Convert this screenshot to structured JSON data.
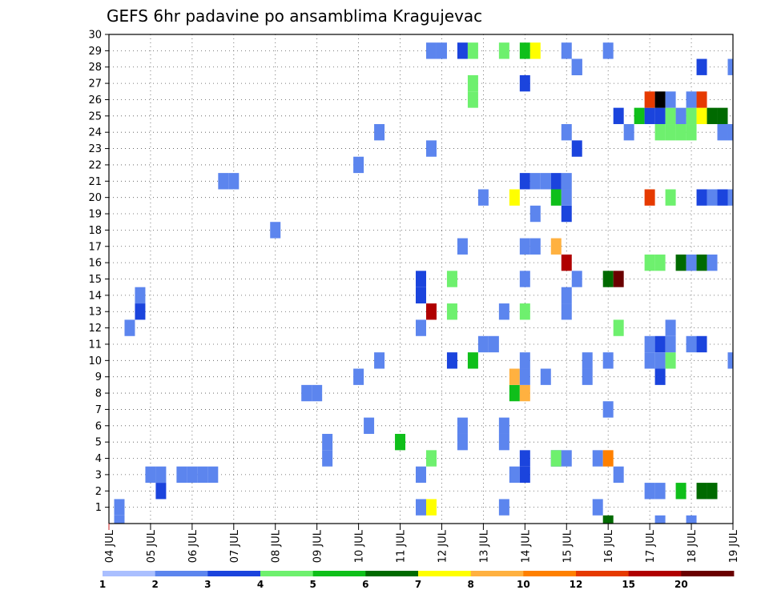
{
  "chart_data": {
    "type": "heatmap",
    "title": "GEFS 6hr padavine po ansamblima Kragujevac",
    "xlabel": "",
    "ylabel": "",
    "x_tick_labels": [
      "04 JUL",
      "05 JUL",
      "06 JUL",
      "07 JUL",
      "08 JUL",
      "09 JUL",
      "10 JUL",
      "11 JUL",
      "12 JUL",
      "13 JUL",
      "14 JUL",
      "15 JUL",
      "16 JUL",
      "17 JUL",
      "18 JUL",
      "19 JUL"
    ],
    "y_tick_labels": [
      "1",
      "2",
      "3",
      "4",
      "5",
      "6",
      "7",
      "8",
      "9",
      "10",
      "11",
      "12",
      "13",
      "14",
      "15",
      "16",
      "17",
      "18",
      "19",
      "20",
      "21",
      "22",
      "23",
      "24",
      "25",
      "26",
      "27",
      "28",
      "29",
      "30"
    ],
    "xlim": [
      0,
      60
    ],
    "ylim": [
      0,
      30
    ],
    "grid": true,
    "colorbar": {
      "labels": [
        "1",
        "2",
        "3",
        "4",
        "5",
        "6",
        "7",
        "8",
        "10",
        "12",
        "15",
        "20"
      ],
      "colors": [
        "#aabfff",
        "#5c85ee",
        "#1b44dd",
        "#6ef06e",
        "#0fbf1a",
        "#006a00",
        "#ffff00",
        "#ffb140",
        "#ff8000",
        "#e63a00",
        "#b00000",
        "#6a0000"
      ]
    },
    "cells": [
      [
        1,
        0,
        1
      ],
      [
        1,
        1,
        1
      ],
      [
        2,
        12,
        1
      ],
      [
        3,
        13,
        2
      ],
      [
        3,
        14,
        1
      ],
      [
        4,
        3,
        1
      ],
      [
        5,
        3,
        1
      ],
      [
        5,
        2,
        2
      ],
      [
        7,
        3,
        1
      ],
      [
        8,
        3,
        1
      ],
      [
        9,
        3,
        1
      ],
      [
        10,
        3,
        1
      ],
      [
        11,
        21,
        1
      ],
      [
        12,
        21,
        1
      ],
      [
        16,
        18,
        1
      ],
      [
        19,
        8,
        1
      ],
      [
        20,
        8,
        1
      ],
      [
        21,
        4,
        1
      ],
      [
        21,
        5,
        1
      ],
      [
        24,
        9,
        1
      ],
      [
        24,
        22,
        1
      ],
      [
        25,
        6,
        1
      ],
      [
        26,
        24,
        1
      ],
      [
        26,
        10,
        1
      ],
      [
        28,
        5,
        4
      ],
      [
        30,
        1,
        1
      ],
      [
        30,
        3,
        1
      ],
      [
        30,
        12,
        1
      ],
      [
        30,
        14,
        2
      ],
      [
        31,
        4,
        3
      ],
      [
        31,
        1,
        6
      ],
      [
        31,
        13,
        10
      ],
      [
        30,
        15,
        2
      ],
      [
        31,
        23,
        1
      ],
      [
        31,
        29,
        1
      ],
      [
        32,
        29,
        1
      ],
      [
        33,
        10,
        2
      ],
      [
        33,
        13,
        3
      ],
      [
        33,
        15,
        3
      ],
      [
        34,
        5,
        1
      ],
      [
        34,
        6,
        1
      ],
      [
        34,
        17,
        1
      ],
      [
        34,
        29,
        2
      ],
      [
        35,
        10,
        4
      ],
      [
        35,
        26,
        3
      ],
      [
        35,
        27,
        3
      ],
      [
        35,
        29,
        3
      ],
      [
        36,
        11,
        1
      ],
      [
        36,
        20,
        1
      ],
      [
        37,
        11,
        1
      ],
      [
        38,
        1,
        1
      ],
      [
        38,
        13,
        1
      ],
      [
        38,
        5,
        1
      ],
      [
        38,
        6,
        1
      ],
      [
        38,
        29,
        3
      ],
      [
        39,
        3,
        1
      ],
      [
        39,
        8,
        4
      ],
      [
        39,
        9,
        7
      ],
      [
        39,
        20,
        6
      ],
      [
        40,
        8,
        7
      ],
      [
        40,
        9,
        1
      ],
      [
        40,
        15,
        1
      ],
      [
        40,
        13,
        3
      ],
      [
        40,
        10,
        1
      ],
      [
        40,
        3,
        2
      ],
      [
        40,
        4,
        2
      ],
      [
        40,
        17,
        1
      ],
      [
        40,
        21,
        2
      ],
      [
        40,
        29,
        4
      ],
      [
        40,
        27,
        2
      ],
      [
        41,
        17,
        1
      ],
      [
        41,
        19,
        1
      ],
      [
        41,
        29,
        6
      ],
      [
        41,
        21,
        1
      ],
      [
        42,
        9,
        1
      ],
      [
        42,
        21,
        1
      ],
      [
        43,
        4,
        2
      ],
      [
        43,
        4,
        3
      ],
      [
        43,
        17,
        7
      ],
      [
        43,
        20,
        4
      ],
      [
        43,
        21,
        2
      ],
      [
        44,
        14,
        1
      ],
      [
        44,
        4,
        1
      ],
      [
        44,
        13,
        1
      ],
      [
        44,
        16,
        10
      ],
      [
        44,
        19,
        2
      ],
      [
        44,
        20,
        1
      ],
      [
        44,
        21,
        1
      ],
      [
        44,
        24,
        1
      ],
      [
        44,
        29,
        1
      ],
      [
        45,
        23,
        2
      ],
      [
        45,
        15,
        1
      ],
      [
        45,
        28,
        2
      ],
      [
        45,
        28,
        1
      ],
      [
        46,
        10,
        1
      ],
      [
        46,
        9,
        1
      ],
      [
        47,
        4,
        1
      ],
      [
        47,
        1,
        1
      ],
      [
        48,
        4,
        8
      ],
      [
        48,
        0,
        5
      ],
      [
        48,
        7,
        1
      ],
      [
        48,
        10,
        1
      ],
      [
        48,
        29,
        1
      ],
      [
        48,
        15,
        5
      ],
      [
        49,
        3,
        1
      ],
      [
        49,
        15,
        11
      ],
      [
        49,
        12,
        3
      ],
      [
        49,
        25,
        2
      ],
      [
        50,
        24,
        1
      ],
      [
        51,
        25,
        4
      ],
      [
        52,
        16,
        3
      ],
      [
        52,
        2,
        1
      ],
      [
        52,
        10,
        1
      ],
      [
        52,
        11,
        1
      ],
      [
        52,
        25,
        2
      ],
      [
        52,
        20,
        9
      ],
      [
        52,
        26,
        9
      ],
      [
        53,
        16,
        3
      ],
      [
        53,
        2,
        1
      ],
      [
        53,
        0,
        1
      ],
      [
        53,
        9,
        2
      ],
      [
        53,
        11,
        2
      ],
      [
        53,
        25,
        2
      ],
      [
        53,
        26,
        13
      ],
      [
        53,
        10,
        1
      ],
      [
        53,
        24,
        3
      ],
      [
        54,
        10,
        3
      ],
      [
        54,
        11,
        1
      ],
      [
        54,
        12,
        1
      ],
      [
        54,
        20,
        3
      ],
      [
        54,
        24,
        3
      ],
      [
        54,
        25,
        3
      ],
      [
        54,
        26,
        1
      ],
      [
        55,
        16,
        5
      ],
      [
        55,
        24,
        3
      ],
      [
        55,
        25,
        1
      ],
      [
        55,
        2,
        4
      ],
      [
        56,
        11,
        1
      ],
      [
        56,
        16,
        1
      ],
      [
        56,
        24,
        3
      ],
      [
        56,
        25,
        3
      ],
      [
        56,
        26,
        1
      ],
      [
        56,
        0,
        1
      ],
      [
        57,
        2,
        5
      ],
      [
        57,
        11,
        2
      ],
      [
        57,
        16,
        5
      ],
      [
        57,
        20,
        2
      ],
      [
        57,
        25,
        6
      ],
      [
        57,
        26,
        9
      ],
      [
        57,
        28,
        2
      ],
      [
        58,
        2,
        5
      ],
      [
        58,
        20,
        1
      ],
      [
        58,
        25,
        5
      ],
      [
        58,
        16,
        1
      ],
      [
        59,
        24,
        1
      ],
      [
        59,
        20,
        2
      ],
      [
        59,
        25,
        5
      ],
      [
        60,
        10,
        1
      ],
      [
        60,
        28,
        1
      ],
      [
        60,
        24,
        1
      ],
      [
        60,
        20,
        1
      ]
    ]
  }
}
